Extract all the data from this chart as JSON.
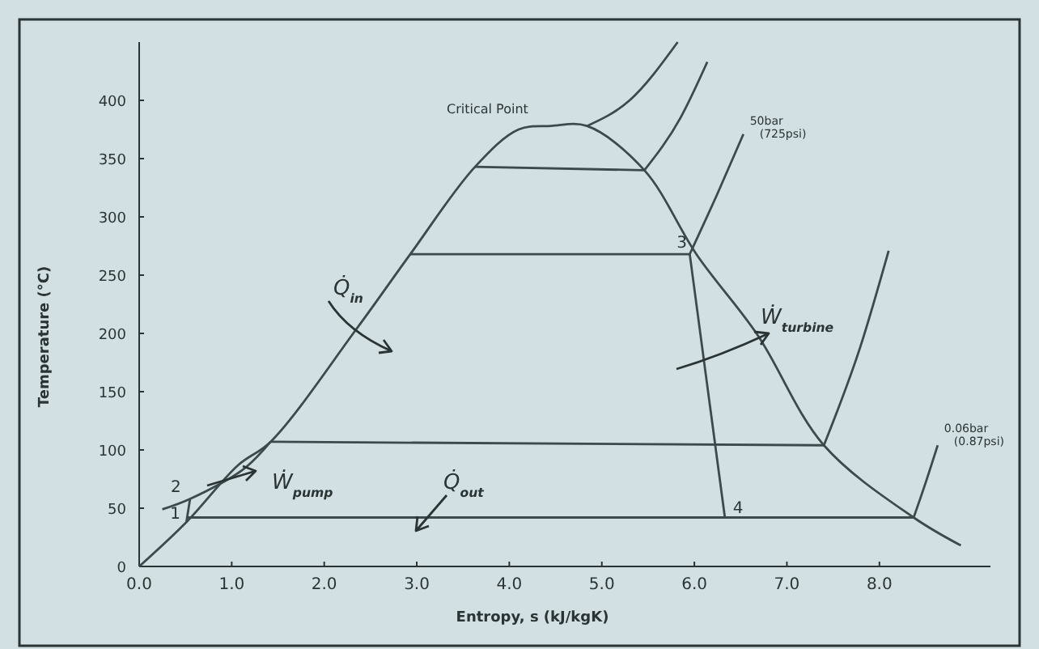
{
  "chart_data": {
    "type": "line",
    "xlabel": "Entropy, s (kJ/kgK)",
    "ylabel": "Temperature (°C)",
    "xlim": [
      0,
      9.2
    ],
    "ylim": [
      0,
      450
    ],
    "xticks": [
      {
        "value": 0,
        "label": "0.0"
      },
      {
        "value": 1,
        "label": "1.0"
      },
      {
        "value": 2,
        "label": "2.0"
      },
      {
        "value": 3,
        "label": "3.0"
      },
      {
        "value": 4,
        "label": "4.0"
      },
      {
        "value": 5,
        "label": "5.0"
      },
      {
        "value": 6,
        "label": "6.0"
      },
      {
        "value": 7,
        "label": "7.0"
      },
      {
        "value": 8,
        "label": "8.0"
      }
    ],
    "yticks": [
      0,
      50,
      100,
      150,
      200,
      250,
      300,
      350,
      400
    ],
    "grid": false,
    "marker": "none",
    "line_style": "solid",
    "series": [
      {
        "color": "#3c4a4c",
        "x": [
          0,
          0.51,
          1.07,
          1.42,
          2.35,
          2.93,
          3.63,
          4.1,
          4.45,
          4.84,
          5.46,
          6.03,
          6.68,
          7.4,
          8.37,
          8.88
        ],
        "values": [
          0,
          38,
          87,
          107,
          204,
          268,
          343,
          375,
          378,
          378,
          340,
          267,
          199,
          104,
          42,
          18
        ]
      },
      {
        "color": "#3c4a4c",
        "x": [
          4.84,
          5.3,
          5.82
        ],
        "values": [
          378,
          400,
          450
        ]
      },
      {
        "color": "#3c4a4c",
        "x": [
          5.46,
          5.85,
          6.14
        ],
        "values": [
          340,
          385,
          433
        ]
      },
      {
        "color": "#3c4a4c",
        "x": [
          5.95,
          6.25,
          6.53
        ],
        "values": [
          268,
          320,
          371
        ]
      },
      {
        "color": "#3c4a4c",
        "x": [
          7.4,
          7.8,
          8.1
        ],
        "values": [
          104,
          190,
          271
        ]
      },
      {
        "color": "#3c4a4c",
        "x": [
          8.37,
          8.5,
          8.63
        ],
        "values": [
          42,
          72,
          104
        ]
      },
      {
        "color": "#3c4a4c",
        "x": [
          2.93,
          5.95
        ],
        "values": [
          268,
          268
        ]
      },
      {
        "color": "#3c4a4c",
        "x": [
          3.63,
          5.46
        ],
        "values": [
          343,
          340
        ]
      },
      {
        "color": "#3c4a4c",
        "x": [
          1.42,
          7.4
        ],
        "values": [
          107,
          104
        ]
      },
      {
        "color": "#3c4a4c",
        "x": [
          0.51,
          8.37
        ],
        "values": [
          42,
          42
        ]
      },
      {
        "color": "#3c4a4c",
        "x": [
          5.95,
          6.33
        ],
        "values": [
          268,
          42
        ]
      },
      {
        "color": "#3c4a4c",
        "x": [
          0.51,
          0.55
        ],
        "values": [
          38,
          58
        ]
      },
      {
        "color": "#3c4a4c",
        "x": [
          0.25,
          0.55,
          1.12,
          1.42
        ],
        "values": [
          49,
          58,
          83,
          107
        ]
      }
    ],
    "annotations": [
      {
        "text": "Critical Point",
        "x": 4.45,
        "y": 378
      },
      {
        "text": "50bar\n(725psi)",
        "x": 6.53,
        "y": 371
      },
      {
        "text": "0.06bar\n(0.87psi)",
        "x": 8.63,
        "y": 104
      },
      "Q̇$_{in}$",
      "Ẇ$_{pump}$",
      "Q̇$_{out}$",
      "Ẇ$_{turbine}$",
      {
        "text": "1",
        "x": 0.51,
        "y": 38
      },
      {
        "text": "2",
        "x": 0.55,
        "y": 58
      },
      {
        "text": "3",
        "x": 5.95,
        "y": 268
      },
      {
        "text": "4",
        "x": 6.33,
        "y": 42
      }
    ]
  }
}
